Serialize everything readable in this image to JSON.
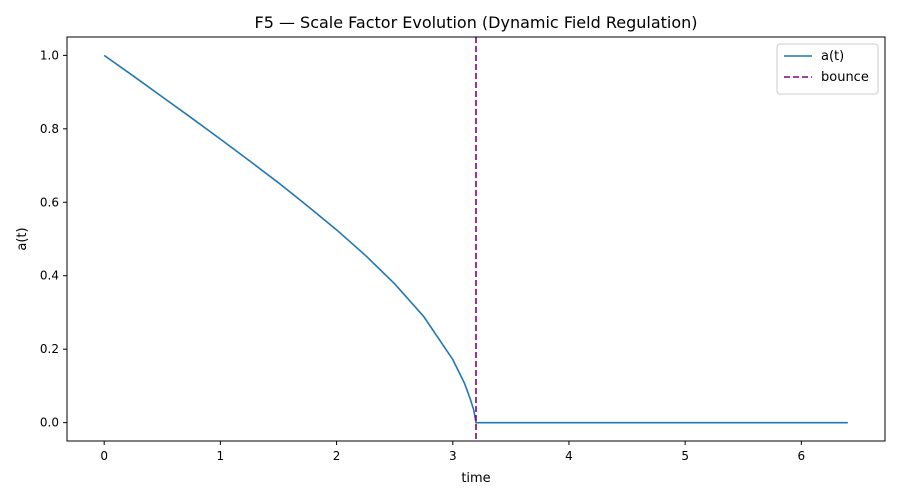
{
  "chart_data": {
    "type": "line",
    "title": "F5 — Scale Factor Evolution (Dynamic Field Regulation)",
    "xlabel": "time",
    "ylabel": "a(t)",
    "xlim": [
      -0.32,
      6.72
    ],
    "ylim": [
      -0.05,
      1.05
    ],
    "xticks": [
      0,
      1,
      2,
      3,
      4,
      5,
      6
    ],
    "xtick_labels": [
      "0",
      "1",
      "2",
      "3",
      "4",
      "5",
      "6"
    ],
    "yticks": [
      0.0,
      0.2,
      0.4,
      0.6,
      0.8,
      1.0
    ],
    "ytick_labels": [
      "0.0",
      "0.2",
      "0.4",
      "0.6",
      "0.8",
      "1.0"
    ],
    "grid": false,
    "legend_position": "top-right",
    "series": [
      {
        "name": "a(t)",
        "color": "#1f77b4",
        "style": "solid",
        "x": [
          0,
          0.25,
          0.5,
          0.75,
          1.0,
          1.25,
          1.5,
          1.75,
          2.0,
          2.25,
          2.5,
          2.75,
          3.0,
          3.1,
          3.15,
          3.18,
          3.2,
          3.5,
          4.0,
          4.5,
          5.0,
          5.5,
          6.0,
          6.4
        ],
        "y": [
          1.0,
          0.944,
          0.887,
          0.83,
          0.772,
          0.713,
          0.653,
          0.59,
          0.525,
          0.455,
          0.378,
          0.289,
          0.172,
          0.108,
          0.065,
          0.035,
          0.0,
          0.0,
          0.0,
          0.0,
          0.0,
          0.0,
          0.0,
          0.0
        ]
      }
    ],
    "vlines": [
      {
        "name": "bounce",
        "x": 3.2,
        "color": "#800080",
        "style": "dashed"
      }
    ]
  }
}
